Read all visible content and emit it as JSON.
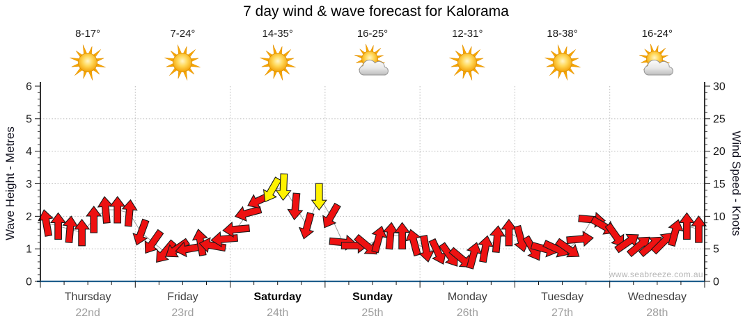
{
  "title": "7 day wind & wave forecast for Kalorama",
  "watermark": "www.seabreeze.com.au",
  "axes": {
    "left_label": "Wave Height - Metres",
    "right_label": "Wind Speed - Knots",
    "left_ticks": [
      "0",
      "1",
      "2",
      "3",
      "4",
      "5",
      "6"
    ],
    "right_ticks": [
      "0",
      "5",
      "10",
      "15",
      "20",
      "25",
      "30"
    ],
    "left_max_metres": 6,
    "right_max_knots": 30,
    "grid": "dotted horizontal every 1 m / 5 kt, dotted vertical at day boundaries"
  },
  "days": [
    {
      "name": "Thursday",
      "date": "22nd",
      "temp": "8-17°",
      "icon": "sunny",
      "bold": false
    },
    {
      "name": "Friday",
      "date": "23rd",
      "temp": "7-24°",
      "icon": "sunny",
      "bold": false
    },
    {
      "name": "Saturday",
      "date": "24th",
      "temp": "14-35°",
      "icon": "sunny",
      "bold": true
    },
    {
      "name": "Sunday",
      "date": "25th",
      "temp": "16-25°",
      "icon": "partly-cloudy",
      "bold": true
    },
    {
      "name": "Monday",
      "date": "26th",
      "temp": "12-31°",
      "icon": "sunny",
      "bold": false
    },
    {
      "name": "Tuesday",
      "date": "27th",
      "temp": "18-38°",
      "icon": "sunny",
      "bold": false
    },
    {
      "name": "Wednesday",
      "date": "28th",
      "temp": "16-24°",
      "icon": "partly-cloudy",
      "bold": false
    }
  ],
  "chart_data": {
    "type": "line",
    "subtype": "wind-direction-arrow-series",
    "points_per_day": 8,
    "x_days": [
      "Thursday 22nd",
      "Friday 23rd",
      "Saturday 24th",
      "Sunday 25th",
      "Monday 26th",
      "Tuesday 27th",
      "Wednesday 28th"
    ],
    "ylabel_left": "Wave Height - Metres",
    "ylabel_right": "Wind Speed - Knots",
    "ylim_left": [
      0,
      6
    ],
    "ylim_right": [
      0,
      30
    ],
    "wind_speed_knots": [
      9,
      8.5,
      8,
      7.5,
      9.5,
      11,
      11,
      10.5,
      7.5,
      6,
      4.5,
      5,
      5,
      6,
      5.5,
      6.5,
      8,
      10.5,
      12.5,
      14,
      14.5,
      11.5,
      8.5,
      13,
      10,
      6,
      5.5,
      5.5,
      6.5,
      7,
      7,
      6,
      5,
      4.5,
      4,
      3.5,
      4,
      5,
      6.5,
      7.5,
      6.5,
      5,
      5,
      5,
      5,
      6.5,
      9.5,
      8.5,
      7,
      6,
      5.5,
      5.5,
      6,
      7.5,
      8.5,
      8
    ],
    "arrow_direction_deg": [
      350,
      0,
      5,
      0,
      0,
      355,
      0,
      5,
      200,
      215,
      220,
      235,
      260,
      350,
      280,
      265,
      265,
      255,
      245,
      210,
      182,
      185,
      195,
      180,
      210,
      95,
      90,
      130,
      15,
      5,
      0,
      345,
      170,
      155,
      145,
      130,
      15,
      10,
      5,
      0,
      165,
      150,
      105,
      115,
      125,
      85,
      95,
      120,
      145,
      55,
      50,
      50,
      45,
      15,
      0,
      0
    ],
    "strong_wind_indices": [
      19,
      20,
      23
    ],
    "colors": {
      "normal": "#EE1111",
      "strong": "#FFF200",
      "outline": "#1a1a1a",
      "trend_line": "#9a9a9a",
      "axis_blue": "#1e5d8c",
      "grid": "#b8b8b8"
    }
  }
}
